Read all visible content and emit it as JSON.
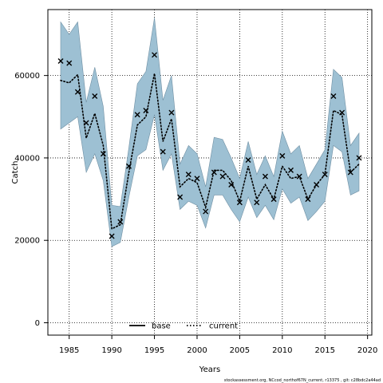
{
  "chart_data": {
    "type": "line",
    "xlabel": "Years",
    "ylabel": "Catch",
    "xlim": [
      1982.5,
      2020.5
    ],
    "ylim": [
      -3000,
      76000
    ],
    "xticks": [
      1985,
      1990,
      1995,
      2000,
      2005,
      2010,
      2015,
      2020
    ],
    "yticks": [
      0,
      20000,
      40000,
      60000
    ],
    "grid": true,
    "legend_position": "bottom-center",
    "legend": [
      {
        "name": "base",
        "style": "solid",
        "color": "#000000"
      },
      {
        "name": "current",
        "style": "dotted",
        "color": "#000000"
      }
    ],
    "band_color": "#9dc0d3",
    "band_edge_color": "#6f8fa3",
    "x": [
      1984,
      1985,
      1986,
      1987,
      1988,
      1989,
      1990,
      1991,
      1992,
      1993,
      1994,
      1995,
      1996,
      1997,
      1998,
      1999,
      2000,
      2001,
      2002,
      2003,
      2004,
      2005,
      2006,
      2007,
      2008,
      2009,
      2010,
      2011,
      2012,
      2013,
      2014,
      2015,
      2016,
      2017,
      2018,
      2019
    ],
    "series": [
      {
        "name": "current",
        "estimate": [
          58800,
          58200,
          60200,
          44800,
          50800,
          43000,
          22800,
          23800,
          36500,
          48000,
          50000,
          60500,
          44000,
          49500,
          33000,
          35000,
          34000,
          28000,
          37000,
          37000,
          34500,
          29500,
          38000,
          30000,
          33500,
          30000,
          38000,
          35000,
          35500,
          30000,
          33500,
          36000,
          51500,
          50500,
          36500,
          38500
        ],
        "lower": [
          47000,
          48500,
          50000,
          36500,
          41000,
          34500,
          18500,
          19500,
          30500,
          40500,
          42000,
          50500,
          37000,
          41000,
          27500,
          29500,
          28500,
          23000,
          31000,
          31000,
          27500,
          24500,
          30500,
          25500,
          28500,
          25000,
          32500,
          29000,
          30500,
          24800,
          27000,
          29500,
          43000,
          41500,
          31000,
          32000
        ],
        "upper": [
          73000,
          70000,
          73000,
          53500,
          62000,
          52500,
          28500,
          28200,
          42500,
          58000,
          61000,
          74000,
          54000,
          60000,
          38500,
          43000,
          41000,
          33000,
          45000,
          44500,
          40000,
          35000,
          44000,
          36000,
          40500,
          35500,
          46500,
          41000,
          43000,
          35000,
          38500,
          42000,
          61500,
          59500,
          43000,
          46000
        ]
      }
    ],
    "observed": {
      "marker": "x",
      "values": [
        63500,
        63000,
        56000,
        48500,
        55000,
        41000,
        21000,
        24500,
        38000,
        50500,
        51500,
        65000,
        41500,
        51000,
        30500,
        36000,
        35000,
        27000,
        36500,
        35500,
        33500,
        29200,
        39500,
        29200,
        35500,
        30000,
        40500,
        37000,
        35500,
        30000,
        33500,
        36000,
        55000,
        51000,
        36500,
        40000
      ]
    },
    "footnote": "stockassessment.org, NCcod_northof67N_current, r13375 , git: c28bdc2a44ad"
  }
}
